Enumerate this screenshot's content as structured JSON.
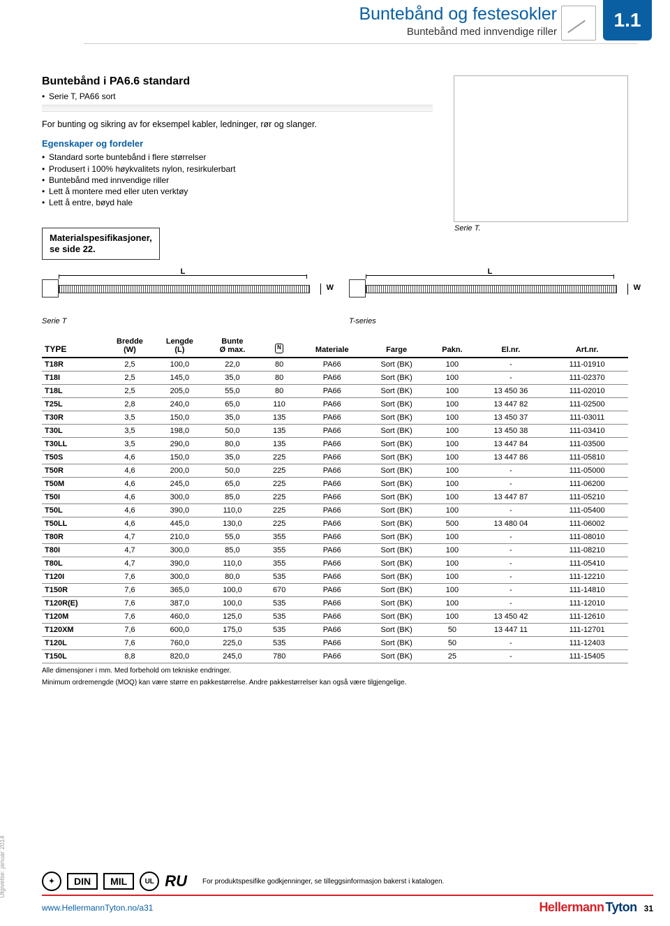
{
  "header": {
    "title": "Buntebånd og festesokler",
    "subtitle": "Buntebånd med innvendige riller",
    "section": "1.1"
  },
  "product": {
    "title": "Buntebånd i PA6.6 standard",
    "bullet": "Serie T, PA66 sort",
    "desc": "For bunting og sikring av for eksempel kabler, ledninger, rør og slanger.",
    "properties_heading": "Egenskaper og fordeler",
    "properties": [
      "Standard sorte buntebånd i flere størrelser",
      "Produsert i 100% høykvalitets nylon, resirkulerbart",
      "Buntebånd med innvendige riller",
      "Lett å montere med eller uten verktøy",
      "Lett å entre, bøyd hale"
    ],
    "image_caption": "Serie T."
  },
  "material_box": "Materialspesifikasjoner,\nse side 22.",
  "diagram": {
    "left_caption": "Serie T",
    "right_caption": "T-series",
    "L": "L",
    "W": "W"
  },
  "table": {
    "columns": [
      "TYPE",
      "Bredde\n(W)",
      "Lengde\n(L)",
      "Bunte\nØ max.",
      "",
      "Materiale",
      "Farge",
      "Pakn.",
      "El.nr.",
      "Art.nr."
    ],
    "col_widths": [
      "11%",
      "8%",
      "9%",
      "9%",
      "7%",
      "11%",
      "11%",
      "8%",
      "12%",
      "14%"
    ],
    "tensile_col_index": 4,
    "rows": [
      [
        "T18R",
        "2,5",
        "100,0",
        "22,0",
        "80",
        "PA66",
        "Sort (BK)",
        "100",
        "-",
        "111-01910"
      ],
      [
        "T18I",
        "2,5",
        "145,0",
        "35,0",
        "80",
        "PA66",
        "Sort (BK)",
        "100",
        "-",
        "111-02370"
      ],
      [
        "T18L",
        "2,5",
        "205,0",
        "55,0",
        "80",
        "PA66",
        "Sort (BK)",
        "100",
        "13 450 36",
        "111-02010"
      ],
      [
        "T25L",
        "2,8",
        "240,0",
        "65,0",
        "110",
        "PA66",
        "Sort (BK)",
        "100",
        "13 447 82",
        "111-02500"
      ],
      [
        "T30R",
        "3,5",
        "150,0",
        "35,0",
        "135",
        "PA66",
        "Sort (BK)",
        "100",
        "13 450 37",
        "111-03011"
      ],
      [
        "T30L",
        "3,5",
        "198,0",
        "50,0",
        "135",
        "PA66",
        "Sort (BK)",
        "100",
        "13 450 38",
        "111-03410"
      ],
      [
        "T30LL",
        "3,5",
        "290,0",
        "80,0",
        "135",
        "PA66",
        "Sort (BK)",
        "100",
        "13 447 84",
        "111-03500"
      ],
      [
        "T50S",
        "4,6",
        "150,0",
        "35,0",
        "225",
        "PA66",
        "Sort (BK)",
        "100",
        "13 447 86",
        "111-05810"
      ],
      [
        "T50R",
        "4,6",
        "200,0",
        "50,0",
        "225",
        "PA66",
        "Sort (BK)",
        "100",
        "-",
        "111-05000"
      ],
      [
        "T50M",
        "4,6",
        "245,0",
        "65,0",
        "225",
        "PA66",
        "Sort (BK)",
        "100",
        "-",
        "111-06200"
      ],
      [
        "T50I",
        "4,6",
        "300,0",
        "85,0",
        "225",
        "PA66",
        "Sort (BK)",
        "100",
        "13 447 87",
        "111-05210"
      ],
      [
        "T50L",
        "4,6",
        "390,0",
        "110,0",
        "225",
        "PA66",
        "Sort (BK)",
        "100",
        "-",
        "111-05400"
      ],
      [
        "T50LL",
        "4,6",
        "445,0",
        "130,0",
        "225",
        "PA66",
        "Sort (BK)",
        "500",
        "13 480 04",
        "111-06002"
      ],
      [
        "T80R",
        "4,7",
        "210,0",
        "55,0",
        "355",
        "PA66",
        "Sort (BK)",
        "100",
        "-",
        "111-08010"
      ],
      [
        "T80I",
        "4,7",
        "300,0",
        "85,0",
        "355",
        "PA66",
        "Sort (BK)",
        "100",
        "-",
        "111-08210"
      ],
      [
        "T80L",
        "4,7",
        "390,0",
        "110,0",
        "355",
        "PA66",
        "Sort (BK)",
        "100",
        "-",
        "111-05410"
      ],
      [
        "T120I",
        "7,6",
        "300,0",
        "80,0",
        "535",
        "PA66",
        "Sort (BK)",
        "100",
        "-",
        "111-12210"
      ],
      [
        "T150R",
        "7,6",
        "365,0",
        "100,0",
        "670",
        "PA66",
        "Sort (BK)",
        "100",
        "-",
        "111-14810"
      ],
      [
        "T120R(E)",
        "7,6",
        "387,0",
        "100,0",
        "535",
        "PA66",
        "Sort (BK)",
        "100",
        "-",
        "111-12010"
      ],
      [
        "T120M",
        "7,6",
        "460,0",
        "125,0",
        "535",
        "PA66",
        "Sort (BK)",
        "100",
        "13 450 42",
        "111-12610"
      ],
      [
        "T120XM",
        "7,6",
        "600,0",
        "175,0",
        "535",
        "PA66",
        "Sort (BK)",
        "50",
        "13 447 11",
        "111-12701"
      ],
      [
        "T120L",
        "7,6",
        "760,0",
        "225,0",
        "535",
        "PA66",
        "Sort (BK)",
        "50",
        "-",
        "111-12403"
      ],
      [
        "T150L",
        "8,8",
        "820,0",
        "245,0",
        "780",
        "PA66",
        "Sort (BK)",
        "25",
        "-",
        "111-15405"
      ]
    ],
    "note1": "Alle dimensjoner i mm. Med forbehold om tekniske endringer.",
    "note2": "Minimum ordremengde (MOQ) kan være større en pakkestørrelse. Andre pakkestørrelser kan også være tilgjengelige."
  },
  "certs": {
    "din": "DIN",
    "mil": "MIL",
    "ul": "UL",
    "ru": "RU",
    "note": "For produktspesifike godkjenninger, se tilleggsinformasjon bakerst i katalogen."
  },
  "footer": {
    "url": "www.HellermannTyton.no/a31",
    "brand_a": "Hellermann",
    "brand_b": "Tyton",
    "page": "31"
  },
  "spine": "Utgivelse: januar 2014"
}
